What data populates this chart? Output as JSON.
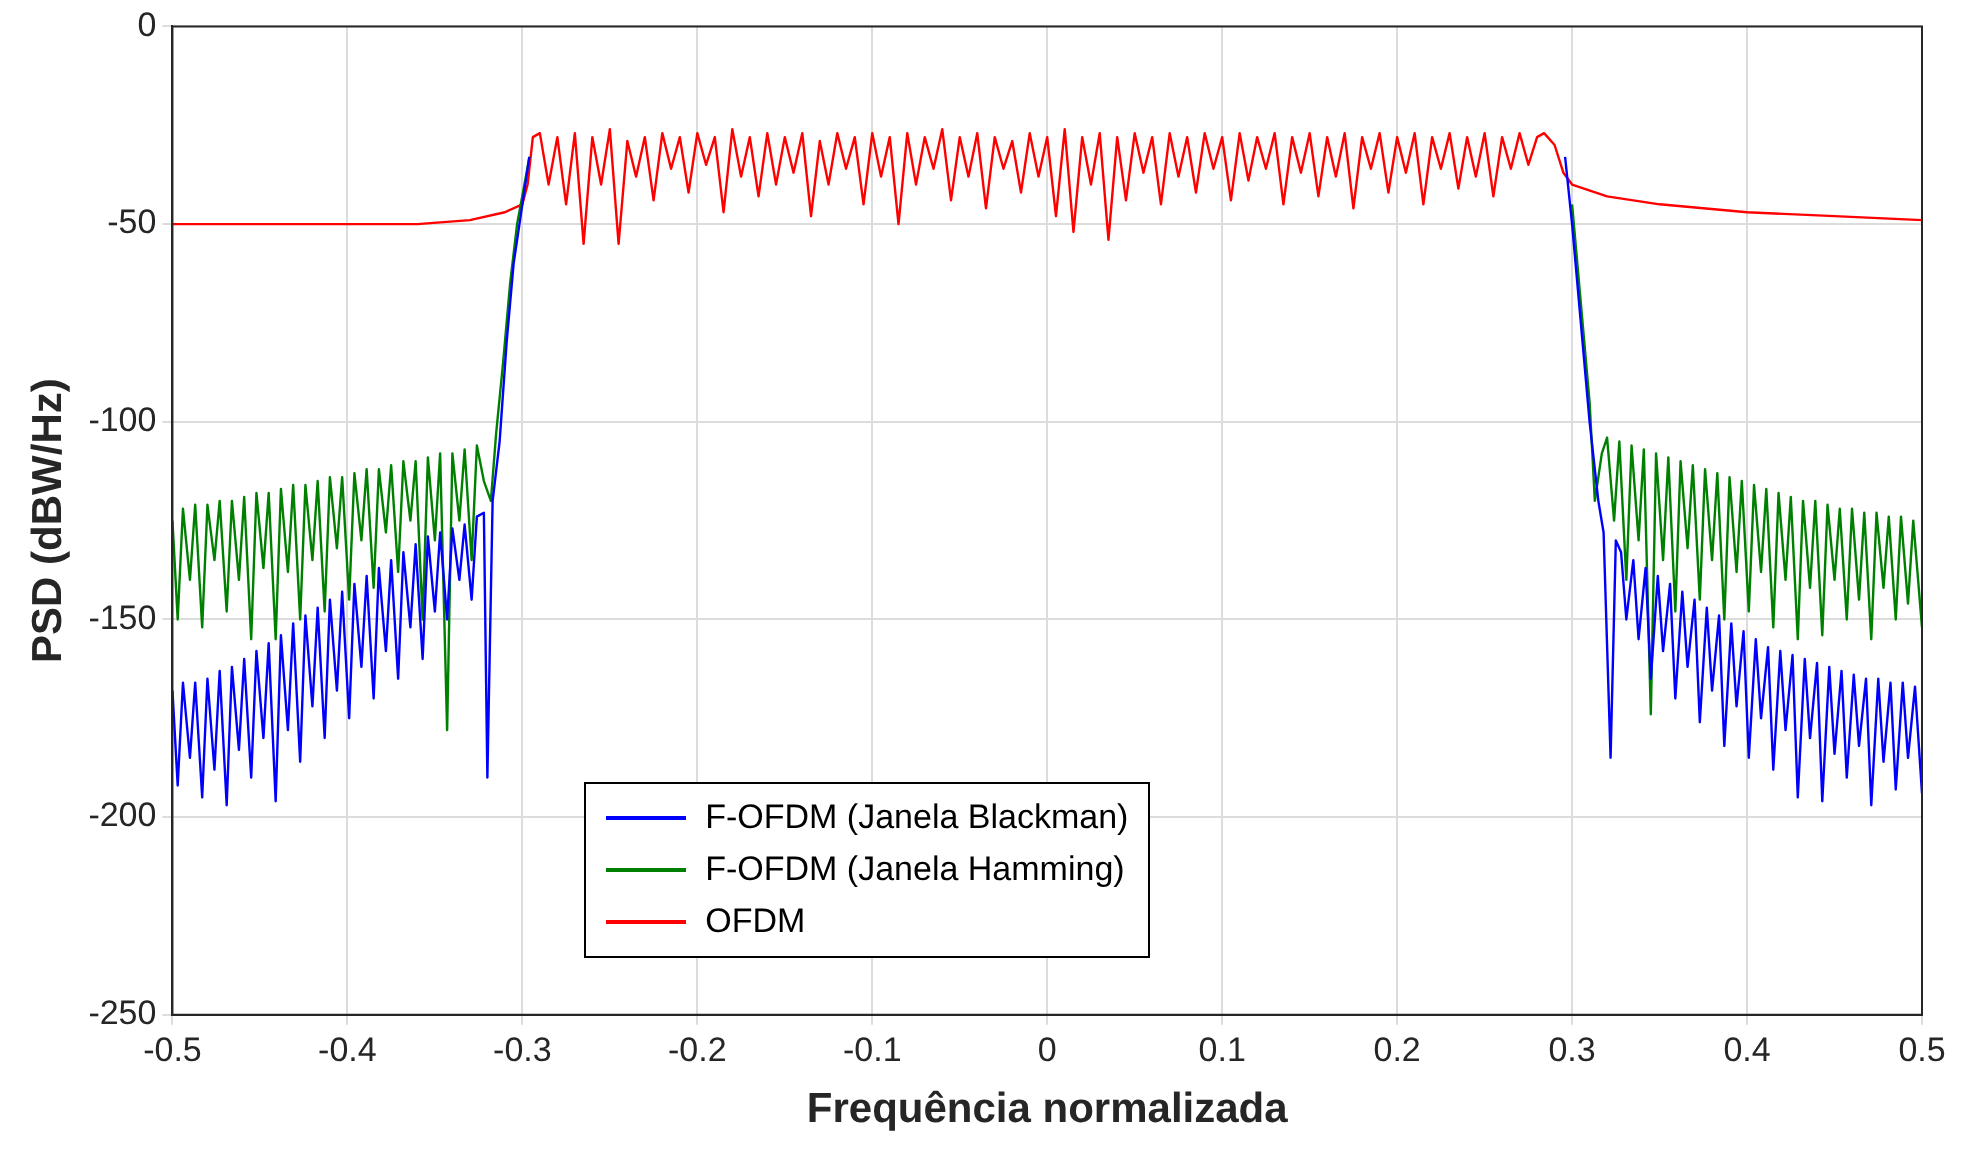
{
  "chart_data": {
    "type": "line",
    "xlabel": "Frequência normalizada",
    "ylabel": "PSD (dBW/Hz)",
    "xlim": [
      -0.5,
      0.5
    ],
    "xticks": [
      -0.5,
      -0.4,
      -0.3,
      -0.2,
      -0.1,
      0,
      0.1,
      0.2,
      0.3,
      0.4,
      0.5
    ],
    "ylim": [
      -250,
      0
    ],
    "yticks": [
      -250,
      -200,
      -150,
      -100,
      -50,
      0
    ],
    "grid": true,
    "legend": "bottom",
    "marker": "none",
    "line_style": "solid",
    "series": [
      {
        "name": "F-OFDM (Janela Blackman)",
        "color": "#0000ff",
        "x": [
          -0.5,
          -0.497,
          -0.494,
          -0.49,
          -0.487,
          -0.483,
          -0.48,
          -0.476,
          -0.473,
          -0.469,
          -0.466,
          -0.462,
          -0.459,
          -0.455,
          -0.452,
          -0.448,
          -0.445,
          -0.441,
          -0.438,
          -0.434,
          -0.431,
          -0.427,
          -0.424,
          -0.42,
          -0.417,
          -0.413,
          -0.41,
          -0.406,
          -0.403,
          -0.399,
          -0.396,
          -0.392,
          -0.389,
          -0.385,
          -0.382,
          -0.378,
          -0.375,
          -0.371,
          -0.368,
          -0.364,
          -0.361,
          -0.357,
          -0.354,
          -0.35,
          -0.347,
          -0.343,
          -0.34,
          -0.336,
          -0.333,
          -0.329,
          -0.326,
          -0.322,
          -0.32,
          -0.317,
          -0.313,
          -0.309,
          -0.305,
          -0.3,
          -0.296,
          null,
          0.296,
          0.3,
          0.305,
          0.31,
          0.315,
          0.318,
          0.322,
          0.325,
          0.328,
          0.331,
          0.335,
          0.338,
          0.342,
          0.345,
          0.349,
          0.352,
          0.356,
          0.359,
          0.363,
          0.366,
          0.37,
          0.373,
          0.377,
          0.38,
          0.384,
          0.387,
          0.391,
          0.394,
          0.398,
          0.401,
          0.405,
          0.408,
          0.412,
          0.415,
          0.419,
          0.422,
          0.426,
          0.429,
          0.433,
          0.436,
          0.44,
          0.443,
          0.447,
          0.45,
          0.454,
          0.457,
          0.461,
          0.464,
          0.468,
          0.471,
          0.475,
          0.478,
          0.482,
          0.485,
          0.489,
          0.492,
          0.496,
          0.5
        ],
        "values": [
          -168,
          -192,
          -166,
          -185,
          -166,
          -195,
          -165,
          -188,
          -163,
          -197,
          -162,
          -183,
          -160,
          -190,
          -158,
          -180,
          -156,
          -196,
          -154,
          -178,
          -151,
          -186,
          -149,
          -172,
          -147,
          -180,
          -145,
          -168,
          -143,
          -175,
          -141,
          -162,
          -139,
          -170,
          -137,
          -158,
          -135,
          -165,
          -133,
          -152,
          -131,
          -160,
          -129,
          -148,
          -128,
          -150,
          -127,
          -140,
          -126,
          -145,
          -124,
          -123,
          -190,
          -120,
          -105,
          -80,
          -60,
          -45,
          -33,
          null,
          -33,
          -50,
          -75,
          -100,
          -120,
          -128,
          -185,
          -130,
          -133,
          -150,
          -135,
          -155,
          -137,
          -165,
          -139,
          -158,
          -141,
          -170,
          -143,
          -162,
          -145,
          -176,
          -147,
          -168,
          -149,
          -182,
          -151,
          -172,
          -153,
          -185,
          -155,
          -175,
          -157,
          -188,
          -158,
          -178,
          -159,
          -195,
          -160,
          -180,
          -161,
          -196,
          -162,
          -184,
          -163,
          -190,
          -164,
          -182,
          -165,
          -197,
          -165,
          -186,
          -166,
          -193,
          -166,
          -185,
          -167,
          -194
        ]
      },
      {
        "name": "F-OFDM (Janela Hamming)",
        "color": "#008000",
        "x": [
          -0.5,
          -0.497,
          -0.494,
          -0.49,
          -0.487,
          -0.483,
          -0.48,
          -0.476,
          -0.473,
          -0.469,
          -0.466,
          -0.462,
          -0.459,
          -0.455,
          -0.452,
          -0.448,
          -0.445,
          -0.441,
          -0.438,
          -0.434,
          -0.431,
          -0.427,
          -0.424,
          -0.42,
          -0.417,
          -0.413,
          -0.41,
          -0.406,
          -0.403,
          -0.399,
          -0.396,
          -0.392,
          -0.389,
          -0.385,
          -0.382,
          -0.378,
          -0.375,
          -0.371,
          -0.368,
          -0.364,
          -0.361,
          -0.357,
          -0.354,
          -0.35,
          -0.347,
          -0.343,
          -0.34,
          -0.336,
          -0.333,
          -0.329,
          -0.326,
          -0.322,
          -0.318,
          -0.315,
          -0.311,
          -0.307,
          -0.303,
          -0.298,
          -0.296,
          null,
          0.3,
          0.305,
          0.31,
          0.313,
          0.317,
          0.32,
          0.324,
          0.327,
          0.331,
          0.334,
          0.338,
          0.341,
          0.345,
          0.348,
          0.352,
          0.355,
          0.359,
          0.362,
          0.366,
          0.369,
          0.373,
          0.376,
          0.38,
          0.383,
          0.387,
          0.39,
          0.394,
          0.397,
          0.401,
          0.404,
          0.408,
          0.411,
          0.415,
          0.418,
          0.422,
          0.425,
          0.429,
          0.432,
          0.436,
          0.439,
          0.443,
          0.446,
          0.45,
          0.453,
          0.457,
          0.46,
          0.464,
          0.467,
          0.471,
          0.474,
          0.478,
          0.481,
          0.485,
          0.488,
          0.492,
          0.495,
          0.5
        ],
        "values": [
          -125,
          -150,
          -122,
          -140,
          -121,
          -152,
          -121,
          -135,
          -120,
          -148,
          -120,
          -140,
          -119,
          -155,
          -118,
          -137,
          -118,
          -155,
          -117,
          -138,
          -116,
          -150,
          -116,
          -135,
          -115,
          -148,
          -114,
          -132,
          -114,
          -145,
          -113,
          -130,
          -112,
          -142,
          -112,
          -128,
          -111,
          -138,
          -110,
          -125,
          -110,
          -150,
          -109,
          -130,
          -108,
          -178,
          -108,
          -125,
          -107,
          -135,
          -106,
          -115,
          -120,
          -103,
          -85,
          -65,
          -50,
          -38,
          -33,
          null,
          -45,
          -70,
          -95,
          -120,
          -108,
          -104,
          -125,
          -105,
          -140,
          -106,
          -130,
          -107,
          -174,
          -108,
          -135,
          -109,
          -148,
          -110,
          -132,
          -111,
          -145,
          -112,
          -135,
          -113,
          -150,
          -114,
          -138,
          -115,
          -148,
          -116,
          -138,
          -117,
          -152,
          -118,
          -140,
          -119,
          -155,
          -120,
          -142,
          -120,
          -154,
          -121,
          -140,
          -122,
          -150,
          -122,
          -145,
          -123,
          -155,
          -123,
          -142,
          -124,
          -150,
          -124,
          -146,
          -125,
          -152
        ]
      },
      {
        "name": "OFDM",
        "color": "#ff0000",
        "x": [
          -0.5,
          -0.45,
          -0.4,
          -0.36,
          -0.33,
          -0.31,
          -0.3,
          -0.297,
          -0.294,
          -0.29,
          -0.285,
          -0.28,
          -0.275,
          -0.27,
          -0.265,
          -0.26,
          -0.255,
          -0.25,
          -0.245,
          -0.24,
          -0.235,
          -0.23,
          -0.225,
          -0.22,
          -0.215,
          -0.21,
          -0.205,
          -0.2,
          -0.195,
          -0.19,
          -0.185,
          -0.18,
          -0.175,
          -0.17,
          -0.165,
          -0.16,
          -0.155,
          -0.15,
          -0.145,
          -0.14,
          -0.135,
          -0.13,
          -0.125,
          -0.12,
          -0.115,
          -0.11,
          -0.105,
          -0.1,
          -0.095,
          -0.09,
          -0.085,
          -0.08,
          -0.075,
          -0.07,
          -0.065,
          -0.06,
          -0.055,
          -0.05,
          -0.045,
          -0.04,
          -0.035,
          -0.03,
          -0.025,
          -0.02,
          -0.015,
          -0.01,
          -0.005,
          0,
          0.005,
          0.01,
          0.015,
          0.02,
          0.025,
          0.03,
          0.035,
          0.04,
          0.045,
          0.05,
          0.055,
          0.06,
          0.065,
          0.07,
          0.075,
          0.08,
          0.085,
          0.09,
          0.095,
          0.1,
          0.105,
          0.11,
          0.115,
          0.12,
          0.125,
          0.13,
          0.135,
          0.14,
          0.145,
          0.15,
          0.155,
          0.16,
          0.165,
          0.17,
          0.175,
          0.18,
          0.185,
          0.19,
          0.195,
          0.2,
          0.205,
          0.21,
          0.215,
          0.22,
          0.225,
          0.23,
          0.235,
          0.24,
          0.245,
          0.25,
          0.255,
          0.26,
          0.265,
          0.27,
          0.275,
          0.28,
          0.284,
          0.29,
          0.295,
          0.3,
          0.32,
          0.35,
          0.4,
          0.45,
          0.5
        ],
        "values": [
          -50,
          -50,
          -50,
          -50,
          -49,
          -47,
          -45,
          -40,
          -28,
          -27,
          -40,
          -28,
          -45,
          -27,
          -55,
          -28,
          -40,
          -26,
          -55,
          -29,
          -38,
          -28,
          -44,
          -27,
          -36,
          -28,
          -42,
          -27,
          -35,
          -28,
          -47,
          -26,
          -38,
          -28,
          -43,
          -27,
          -40,
          -28,
          -37,
          -27,
          -48,
          -29,
          -40,
          -27,
          -36,
          -28,
          -45,
          -27,
          -38,
          -28,
          -50,
          -27,
          -40,
          -28,
          -36,
          -26,
          -44,
          -28,
          -38,
          -27,
          -46,
          -28,
          -36,
          -29,
          -42,
          -27,
          -38,
          -28,
          -48,
          -26,
          -52,
          -28,
          -40,
          -27,
          -54,
          -28,
          -44,
          -27,
          -37,
          -28,
          -45,
          -27,
          -38,
          -28,
          -42,
          -27,
          -36,
          -28,
          -44,
          -27,
          -39,
          -28,
          -36,
          -27,
          -45,
          -28,
          -37,
          -27,
          -43,
          -28,
          -38,
          -27,
          -46,
          -28,
          -36,
          -27,
          -42,
          -28,
          -37,
          -27,
          -45,
          -28,
          -36,
          -27,
          -41,
          -28,
          -38,
          -27,
          -43,
          -28,
          -36,
          -27,
          -35,
          -28,
          -27,
          -30,
          -37,
          -40,
          -43,
          -45,
          -47,
          -48,
          -49
        ]
      }
    ]
  }
}
